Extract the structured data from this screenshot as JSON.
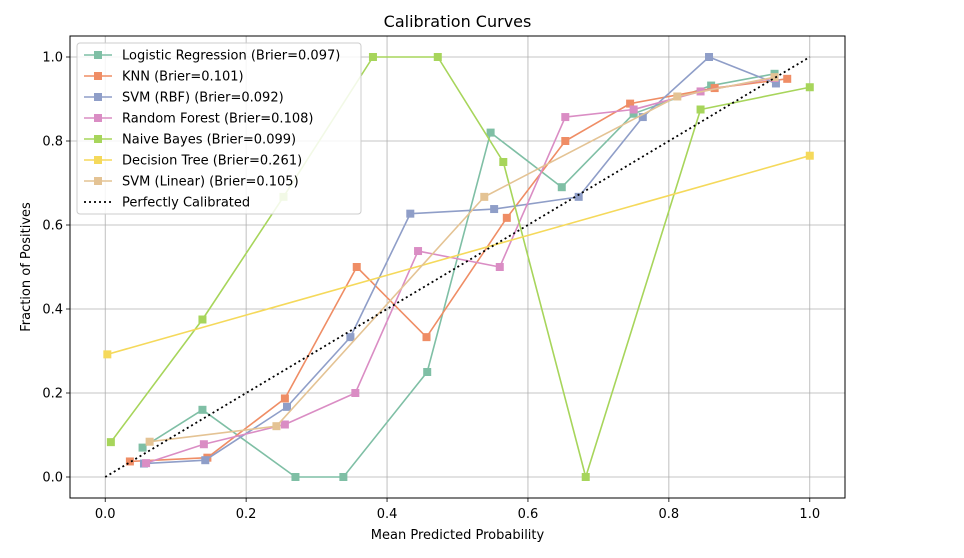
{
  "chart_data": {
    "type": "line",
    "title": "Calibration Curves",
    "xlabel": "Mean Predicted Probability",
    "ylabel": "Fraction of Positives",
    "xlim": [
      -0.05,
      1.05
    ],
    "ylim": [
      -0.05,
      1.05
    ],
    "xticks": [
      0.0,
      0.2,
      0.4,
      0.6,
      0.8,
      1.0
    ],
    "xtick_labels": [
      "0.0",
      "0.2",
      "0.4",
      "0.6",
      "0.8",
      "1.0"
    ],
    "yticks": [
      0.0,
      0.2,
      0.4,
      0.6,
      0.8,
      1.0
    ],
    "ytick_labels": [
      "0.0",
      "0.2",
      "0.4",
      "0.6",
      "0.8",
      "1.0"
    ],
    "grid": true,
    "legend_position": "upper-left",
    "series": [
      {
        "name": "Logistic Regression (Brier=0.097)",
        "color": "#7fbfa5",
        "marker": "square",
        "x": [
          0.053,
          0.138,
          0.27,
          0.338,
          0.457,
          0.547,
          0.648,
          0.75,
          0.86,
          0.95
        ],
        "y": [
          0.07,
          0.16,
          0.0,
          0.0,
          0.25,
          0.82,
          0.69,
          0.865,
          0.932,
          0.96
        ]
      },
      {
        "name": "KNN (Brier=0.101)",
        "color": "#ef8d65",
        "marker": "square",
        "x": [
          0.035,
          0.145,
          0.255,
          0.357,
          0.456,
          0.57,
          0.653,
          0.745,
          0.865,
          0.968
        ],
        "y": [
          0.037,
          0.046,
          0.187,
          0.5,
          0.333,
          0.617,
          0.8,
          0.889,
          0.926,
          0.948
        ]
      },
      {
        "name": "SVM (RBF) (Brier=0.092)",
        "color": "#8f9ec8",
        "marker": "square",
        "x": [
          0.055,
          0.142,
          0.258,
          0.348,
          0.433,
          0.552,
          0.672,
          0.763,
          0.857,
          0.952
        ],
        "y": [
          0.032,
          0.04,
          0.167,
          0.333,
          0.627,
          0.638,
          0.667,
          0.857,
          1.0,
          0.937
        ]
      },
      {
        "name": "Random Forest (Brier=0.108)",
        "color": "#da8dc4",
        "marker": "square",
        "x": [
          0.058,
          0.14,
          0.255,
          0.355,
          0.444,
          0.56,
          0.653,
          0.75,
          0.845,
          0.95
        ],
        "y": [
          0.033,
          0.078,
          0.125,
          0.2,
          0.538,
          0.5,
          0.857,
          0.875,
          0.918,
          0.95
        ]
      },
      {
        "name": "Naive Bayes (Brier=0.099)",
        "color": "#a7d55b",
        "marker": "square",
        "x": [
          0.008,
          0.138,
          0.253,
          0.38,
          0.472,
          0.565,
          0.682,
          0.845,
          1.0
        ],
        "y": [
          0.083,
          0.375,
          0.667,
          1.0,
          1.0,
          0.75,
          0.0,
          0.875,
          0.928
        ]
      },
      {
        "name": "Decision Tree (Brier=0.261)",
        "color": "#f5d95b",
        "marker": "square",
        "x": [
          0.003,
          1.0
        ],
        "y": [
          0.292,
          0.765
        ]
      },
      {
        "name": "SVM (Linear) (Brier=0.105)",
        "color": "#e4c394",
        "marker": "square",
        "x": [
          0.063,
          0.243,
          0.538,
          0.812,
          0.95
        ],
        "y": [
          0.084,
          0.121,
          0.667,
          0.906,
          0.952
        ]
      },
      {
        "name": "Perfectly Calibrated",
        "color": "#000000",
        "marker": "none",
        "dash": "dotted",
        "x": [
          0.0,
          1.0
        ],
        "y": [
          0.0,
          1.0
        ]
      }
    ]
  }
}
